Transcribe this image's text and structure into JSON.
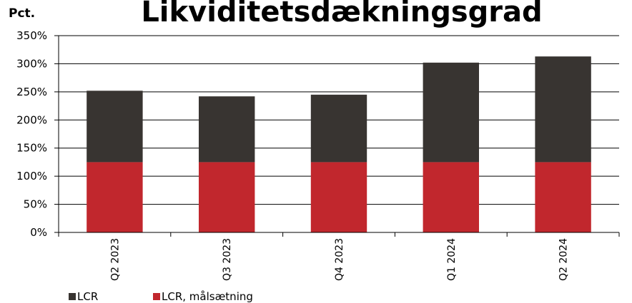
{
  "chart_data": {
    "type": "bar",
    "stacked": true,
    "title": "Likviditetsdækningsgrad",
    "unit_label": "Pct.",
    "categories": [
      "Q2 2023",
      "Q3 2023",
      "Q4 2023",
      "Q1 2024",
      "Q2 2024"
    ],
    "series": [
      {
        "name": "LCR, målsætning",
        "values": [
          125,
          125,
          125,
          125,
          125
        ],
        "color": "#c1272d"
      },
      {
        "name": "LCR",
        "values": [
          127,
          117,
          120,
          177,
          188
        ],
        "color": "#383431"
      }
    ],
    "totals": [
      252,
      242,
      245,
      302,
      313
    ],
    "ylim": [
      0,
      350
    ],
    "yticks": [
      0,
      50,
      100,
      150,
      200,
      250,
      300,
      350
    ],
    "ytick_labels": [
      "0%",
      "50%",
      "100%",
      "150%",
      "200%",
      "250%",
      "300%",
      "350%"
    ],
    "grid": true,
    "legend_position": "bottom-left",
    "legend": [
      {
        "label": "LCR",
        "color": "#383431"
      },
      {
        "label": "LCR, målsætning",
        "color": "#c1272d"
      }
    ]
  }
}
